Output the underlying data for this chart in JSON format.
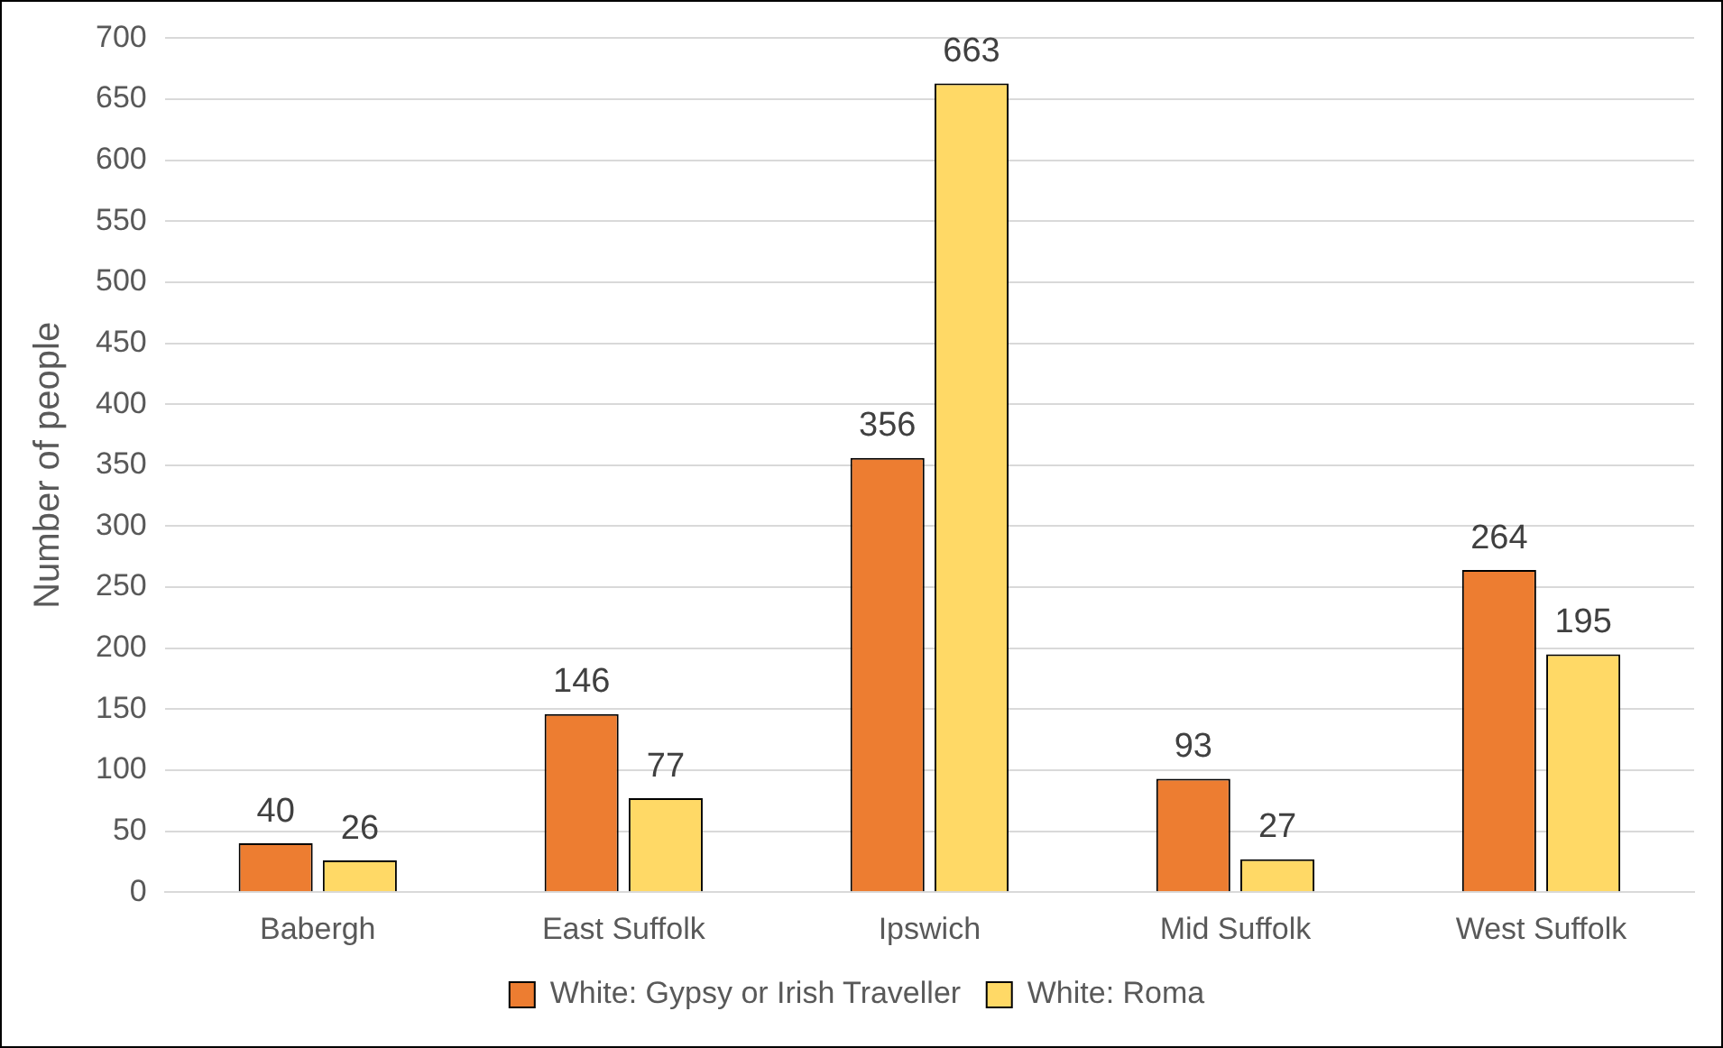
{
  "chart_data": {
    "type": "bar",
    "ylabel": "Number of people",
    "categories": [
      "Babergh",
      "East Suffolk",
      "Ipswich",
      "Mid Suffolk",
      "West Suffolk"
    ],
    "series": [
      {
        "name": "White: Gypsy or Irish Traveller",
        "color": "#ed7d31",
        "values": [
          40,
          146,
          356,
          93,
          264
        ]
      },
      {
        "name": "White: Roma",
        "color": "#ffd966",
        "values": [
          26,
          77,
          663,
          27,
          195
        ]
      }
    ],
    "ylim": [
      0,
      700
    ],
    "yticks": [
      0,
      50,
      100,
      150,
      200,
      250,
      300,
      350,
      400,
      450,
      500,
      550,
      600,
      650,
      700
    ],
    "grid": "y",
    "legend": "bottom",
    "data_labels": true
  }
}
